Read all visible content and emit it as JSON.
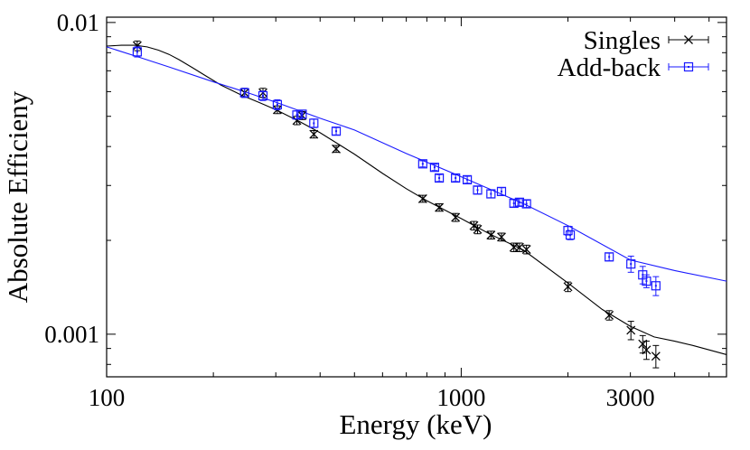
{
  "chart_data": {
    "type": "scatter",
    "xscale": "log",
    "yscale": "log",
    "xlim": [
      100,
      5600
    ],
    "ylim": [
      0.00073,
      0.0104
    ],
    "xlabel": "Energy (keV)",
    "ylabel": "Absolute Efficieny",
    "xticks": [
      {
        "value": 100,
        "label": "100"
      },
      {
        "value": 1000,
        "label": "1000"
      },
      {
        "value": 3000,
        "label": "3000"
      }
    ],
    "yticks": [
      {
        "value": 0.001,
        "label": "0.001"
      },
      {
        "value": 0.01,
        "label": "0.01"
      }
    ],
    "legend_position": "top-right",
    "colors": {
      "singles": "#000000",
      "addback": "#1a1aff"
    },
    "series": [
      {
        "name": "Singles",
        "marker": "cross",
        "points": [
          {
            "x": 122,
            "y": 0.00842,
            "err": 0.0003
          },
          {
            "x": 245,
            "y": 0.00595,
            "err": 0.0002
          },
          {
            "x": 276,
            "y": 0.00595,
            "err": 0.0002
          },
          {
            "x": 303,
            "y": 0.00525,
            "err": 0.00015
          },
          {
            "x": 344,
            "y": 0.00485,
            "err": 0.00015
          },
          {
            "x": 356,
            "y": 0.00503,
            "err": 0.00015
          },
          {
            "x": 384,
            "y": 0.00438,
            "err": 0.00012
          },
          {
            "x": 444,
            "y": 0.00393,
            "err": 0.0001
          },
          {
            "x": 779,
            "y": 0.00272,
            "err": 7e-05
          },
          {
            "x": 867,
            "y": 0.00255,
            "err": 7e-05
          },
          {
            "x": 964,
            "y": 0.00237,
            "err": 7e-05
          },
          {
            "x": 1086,
            "y": 0.00223,
            "err": 7e-05
          },
          {
            "x": 1112,
            "y": 0.00217,
            "err": 7e-05
          },
          {
            "x": 1213,
            "y": 0.00208,
            "err": 6e-05
          },
          {
            "x": 1299,
            "y": 0.00205,
            "err": 6e-05
          },
          {
            "x": 1408,
            "y": 0.0019,
            "err": 6e-05
          },
          {
            "x": 1460,
            "y": 0.0019,
            "err": 6e-05
          },
          {
            "x": 1528,
            "y": 0.00187,
            "err": 6e-05
          },
          {
            "x": 2000,
            "y": 0.00142,
            "err": 5e-05
          },
          {
            "x": 2614,
            "y": 0.00115,
            "err": 4e-05
          },
          {
            "x": 3010,
            "y": 0.00103,
            "err": 7e-05
          },
          {
            "x": 3250,
            "y": 0.00093,
            "err": 6e-05
          },
          {
            "x": 3330,
            "y": 0.00089,
            "err": 6e-05
          },
          {
            "x": 3540,
            "y": 0.00085,
            "err": 7e-05
          }
        ]
      },
      {
        "name": "Add-back",
        "marker": "box",
        "points": [
          {
            "x": 122,
            "y": 0.00805,
            "err": 0.0003
          },
          {
            "x": 245,
            "y": 0.00595,
            "err": 0.0002
          },
          {
            "x": 276,
            "y": 0.00582,
            "err": 0.0002
          },
          {
            "x": 303,
            "y": 0.00545,
            "err": 0.0002
          },
          {
            "x": 344,
            "y": 0.00505,
            "err": 0.00015
          },
          {
            "x": 356,
            "y": 0.00508,
            "err": 0.00015
          },
          {
            "x": 384,
            "y": 0.00475,
            "err": 0.00015
          },
          {
            "x": 444,
            "y": 0.00448,
            "err": 0.00012
          },
          {
            "x": 779,
            "y": 0.00352,
            "err": 8e-05
          },
          {
            "x": 841,
            "y": 0.00343,
            "err": 8e-05
          },
          {
            "x": 867,
            "y": 0.00317,
            "err": 8e-05
          },
          {
            "x": 964,
            "y": 0.00317,
            "err": 8e-05
          },
          {
            "x": 1040,
            "y": 0.00313,
            "err": 8e-05
          },
          {
            "x": 1112,
            "y": 0.0029,
            "err": 8e-05
          },
          {
            "x": 1213,
            "y": 0.00282,
            "err": 8e-05
          },
          {
            "x": 1299,
            "y": 0.00287,
            "err": 8e-05
          },
          {
            "x": 1408,
            "y": 0.00263,
            "err": 7e-05
          },
          {
            "x": 1460,
            "y": 0.00265,
            "err": 7e-05
          },
          {
            "x": 1528,
            "y": 0.00262,
            "err": 7e-05
          },
          {
            "x": 2000,
            "y": 0.00215,
            "err": 7e-05
          },
          {
            "x": 2030,
            "y": 0.00208,
            "err": 7e-05
          },
          {
            "x": 2614,
            "y": 0.00177,
            "err": 5e-05
          },
          {
            "x": 3010,
            "y": 0.00168,
            "err": 0.0001
          },
          {
            "x": 3250,
            "y": 0.00155,
            "err": 0.0001
          },
          {
            "x": 3330,
            "y": 0.00148,
            "err": 7e-05
          },
          {
            "x": 3540,
            "y": 0.00143,
            "err": 0.0001
          }
        ]
      }
    ],
    "fits": [
      {
        "name": "Singles fit",
        "points": [
          {
            "x": 100,
            "y": 0.0084
          },
          {
            "x": 110,
            "y": 0.00845
          },
          {
            "x": 120,
            "y": 0.00845
          },
          {
            "x": 130,
            "y": 0.00835
          },
          {
            "x": 140,
            "y": 0.00815
          },
          {
            "x": 150,
            "y": 0.0079
          },
          {
            "x": 160,
            "y": 0.0076
          },
          {
            "x": 175,
            "y": 0.00715
          },
          {
            "x": 190,
            "y": 0.00675
          },
          {
            "x": 210,
            "y": 0.0063
          },
          {
            "x": 240,
            "y": 0.00585
          },
          {
            "x": 270,
            "y": 0.00553
          },
          {
            "x": 300,
            "y": 0.00525
          },
          {
            "x": 350,
            "y": 0.00481
          },
          {
            "x": 400,
            "y": 0.00443
          },
          {
            "x": 500,
            "y": 0.00378
          },
          {
            "x": 600,
            "y": 0.00328
          },
          {
            "x": 700,
            "y": 0.00293
          },
          {
            "x": 800,
            "y": 0.00268
          },
          {
            "x": 1000,
            "y": 0.00235
          },
          {
            "x": 1200,
            "y": 0.0021
          },
          {
            "x": 1500,
            "y": 0.00186
          },
          {
            "x": 2000,
            "y": 0.00146
          },
          {
            "x": 2500,
            "y": 0.0012
          },
          {
            "x": 3000,
            "y": 0.00106
          },
          {
            "x": 3500,
            "y": 0.00098
          },
          {
            "x": 4000,
            "y": 0.00095
          },
          {
            "x": 4500,
            "y": 0.00092
          },
          {
            "x": 5600,
            "y": 0.00086
          }
        ]
      },
      {
        "name": "Add-back fit",
        "points": [
          {
            "x": 100,
            "y": 0.00835
          },
          {
            "x": 125,
            "y": 0.0077
          },
          {
            "x": 150,
            "y": 0.0072
          },
          {
            "x": 200,
            "y": 0.00645
          },
          {
            "x": 250,
            "y": 0.00595
          },
          {
            "x": 300,
            "y": 0.00555
          },
          {
            "x": 400,
            "y": 0.00493
          },
          {
            "x": 500,
            "y": 0.00452
          },
          {
            "x": 700,
            "y": 0.0038
          },
          {
            "x": 1000,
            "y": 0.0032
          },
          {
            "x": 1500,
            "y": 0.00262
          },
          {
            "x": 2000,
            "y": 0.00223
          },
          {
            "x": 3000,
            "y": 0.00173
          },
          {
            "x": 4000,
            "y": 0.0016
          },
          {
            "x": 5600,
            "y": 0.00148
          }
        ]
      }
    ]
  }
}
